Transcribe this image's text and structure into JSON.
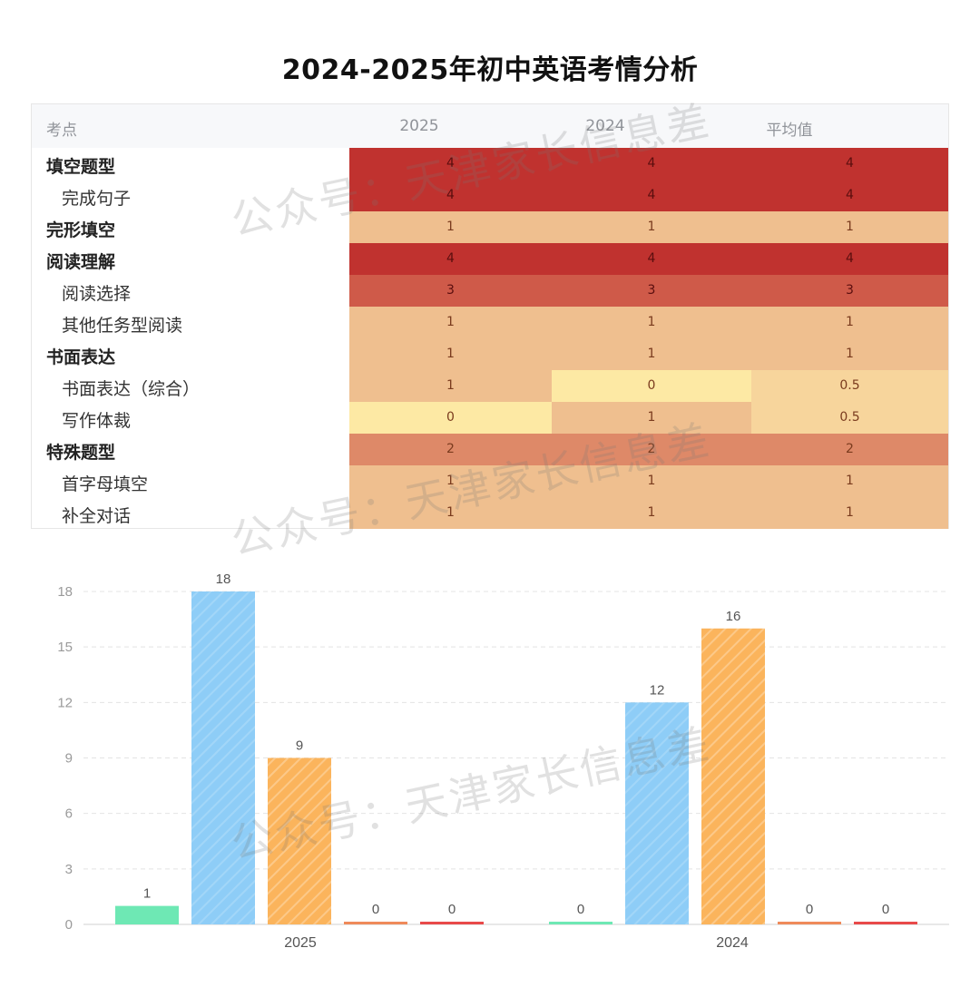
{
  "title": "2024-2025年初中英语考情分析",
  "table": {
    "headers": [
      "考点",
      "2025",
      "2024",
      "平均值"
    ],
    "rows": [
      {
        "label": "填空题型",
        "level": "parent",
        "values": [
          "4",
          "4",
          "4"
        ]
      },
      {
        "label": "完成句子",
        "level": "child",
        "values": [
          "4",
          "4",
          "4"
        ]
      },
      {
        "label": "完形填空",
        "level": "parent",
        "values": [
          "1",
          "1",
          "1"
        ]
      },
      {
        "label": "阅读理解",
        "level": "parent",
        "values": [
          "4",
          "4",
          "4"
        ]
      },
      {
        "label": "阅读选择",
        "level": "child",
        "values": [
          "3",
          "3",
          "3"
        ]
      },
      {
        "label": "其他任务型阅读",
        "level": "child",
        "values": [
          "1",
          "1",
          "1"
        ]
      },
      {
        "label": "书面表达",
        "level": "parent",
        "values": [
          "1",
          "1",
          "1"
        ]
      },
      {
        "label": "书面表达（综合）",
        "level": "child",
        "values": [
          "1",
          "0",
          "0.5"
        ]
      },
      {
        "label": "写作体裁",
        "level": "child",
        "values": [
          "0",
          "1",
          "0.5"
        ]
      },
      {
        "label": "特殊题型",
        "level": "parent",
        "values": [
          "2",
          "2",
          "2"
        ]
      },
      {
        "label": "首字母填空",
        "level": "child",
        "values": [
          "1",
          "1",
          "1"
        ]
      },
      {
        "label": "补全对话",
        "level": "child",
        "values": [
          "1",
          "1",
          "1"
        ]
      }
    ],
    "colors": {
      "0": "#fde9a4",
      "0.5": "#f7d59c",
      "1": "#efbf8f",
      "2": "#de8968",
      "3": "#cf5a49",
      "4": "#c0322f"
    }
  },
  "chart_data": {
    "type": "bar",
    "categories": [
      "2025",
      "2024"
    ],
    "series": [
      {
        "values": [
          1,
          0
        ],
        "color": "#6ee8b4",
        "pattern": "none"
      },
      {
        "values": [
          18,
          12
        ],
        "color": "#8ecdf7",
        "pattern": "none"
      },
      {
        "values": [
          9,
          16
        ],
        "color": "#fbb45c",
        "pattern": "hatch"
      },
      {
        "values": [
          0,
          0
        ],
        "color": "#ef8a5a",
        "pattern": "none"
      },
      {
        "values": [
          0,
          0
        ],
        "color": "#e84a4a",
        "pattern": "none"
      }
    ],
    "y_ticks": [
      "0",
      "3",
      "6",
      "9",
      "12",
      "15",
      "18"
    ],
    "ylim": [
      0,
      18
    ],
    "grid": true,
    "data_labels": true
  },
  "watermark": "公众号：天津家长信息差"
}
